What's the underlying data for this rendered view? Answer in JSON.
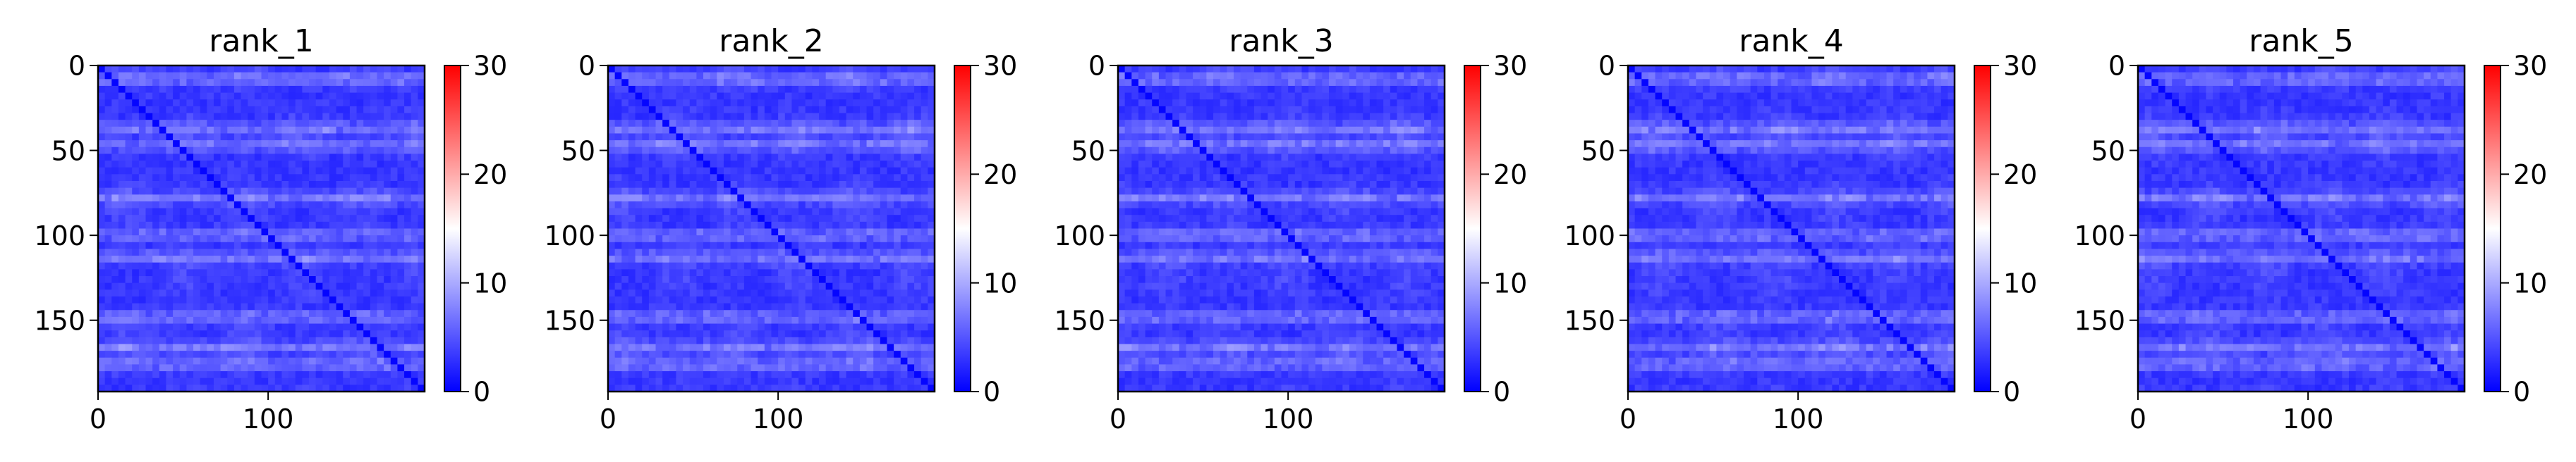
{
  "chart_data": {
    "type": "heatmap",
    "colormap": {
      "name": "bwr",
      "stops": [
        "#0000ff",
        "#ffffff",
        "#ff0000"
      ],
      "range": [
        0,
        30
      ],
      "ticks": [
        0,
        10,
        20,
        30
      ]
    },
    "x_range": [
      0,
      192
    ],
    "y_range": [
      0,
      192
    ],
    "x_ticks": [
      0,
      100
    ],
    "y_ticks": [
      0,
      50,
      100,
      150
    ],
    "y_inverted": true,
    "band_rows": [
      8,
      37,
      47,
      78,
      100,
      113,
      148,
      166,
      176
    ],
    "panels": [
      {
        "title": "rank_1"
      },
      {
        "title": "rank_2"
      },
      {
        "title": "rank_3"
      },
      {
        "title": "rank_4"
      },
      {
        "title": "rank_5"
      }
    ]
  }
}
